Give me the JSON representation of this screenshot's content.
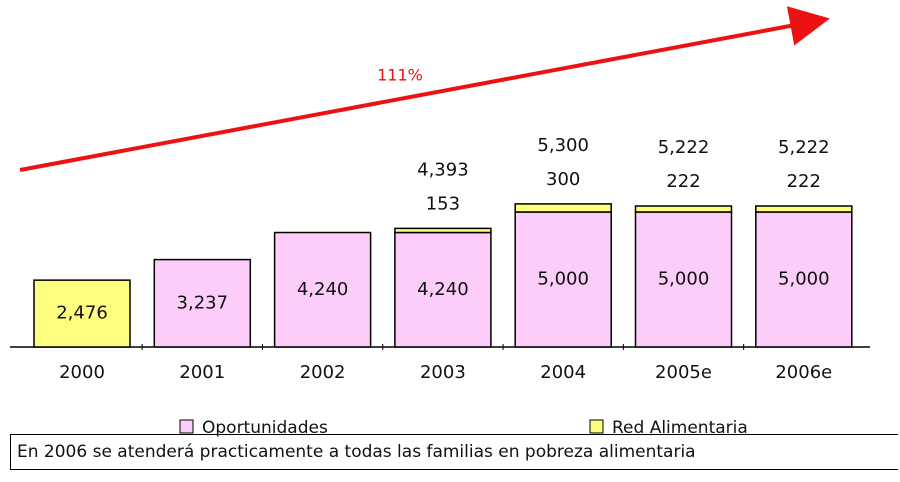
{
  "chart_data": {
    "type": "bar",
    "stacked": true,
    "annotation": "111%",
    "footnote": "En 2006 se atenderá practicamente a todas las familias en pobreza alimentaria",
    "categories": [
      "2000",
      "2001",
      "2002",
      "2003",
      "2004",
      "2005e",
      "2006e"
    ],
    "series": [
      {
        "name": "Oportunidades",
        "color": "#fbcdf8",
        "values": [
          null,
          3237,
          4240,
          4240,
          5000,
          5000,
          5000
        ],
        "value_labels": [
          null,
          "3,237",
          "4,240",
          "4,240",
          "5,000",
          "5,000",
          "5,000"
        ]
      },
      {
        "name": "Red Alimentaria",
        "color": "#fdfd80",
        "values": [
          2476,
          null,
          null,
          153,
          300,
          222,
          222
        ],
        "value_labels": [
          "2,476",
          null,
          null,
          "153",
          "300",
          "222",
          "222"
        ]
      }
    ],
    "totals": [
      null,
      null,
      null,
      4393,
      5300,
      5222,
      5222
    ],
    "totals_labels": [
      null,
      null,
      null,
      "4,393",
      "5,300",
      "5,222",
      "5,222"
    ]
  }
}
